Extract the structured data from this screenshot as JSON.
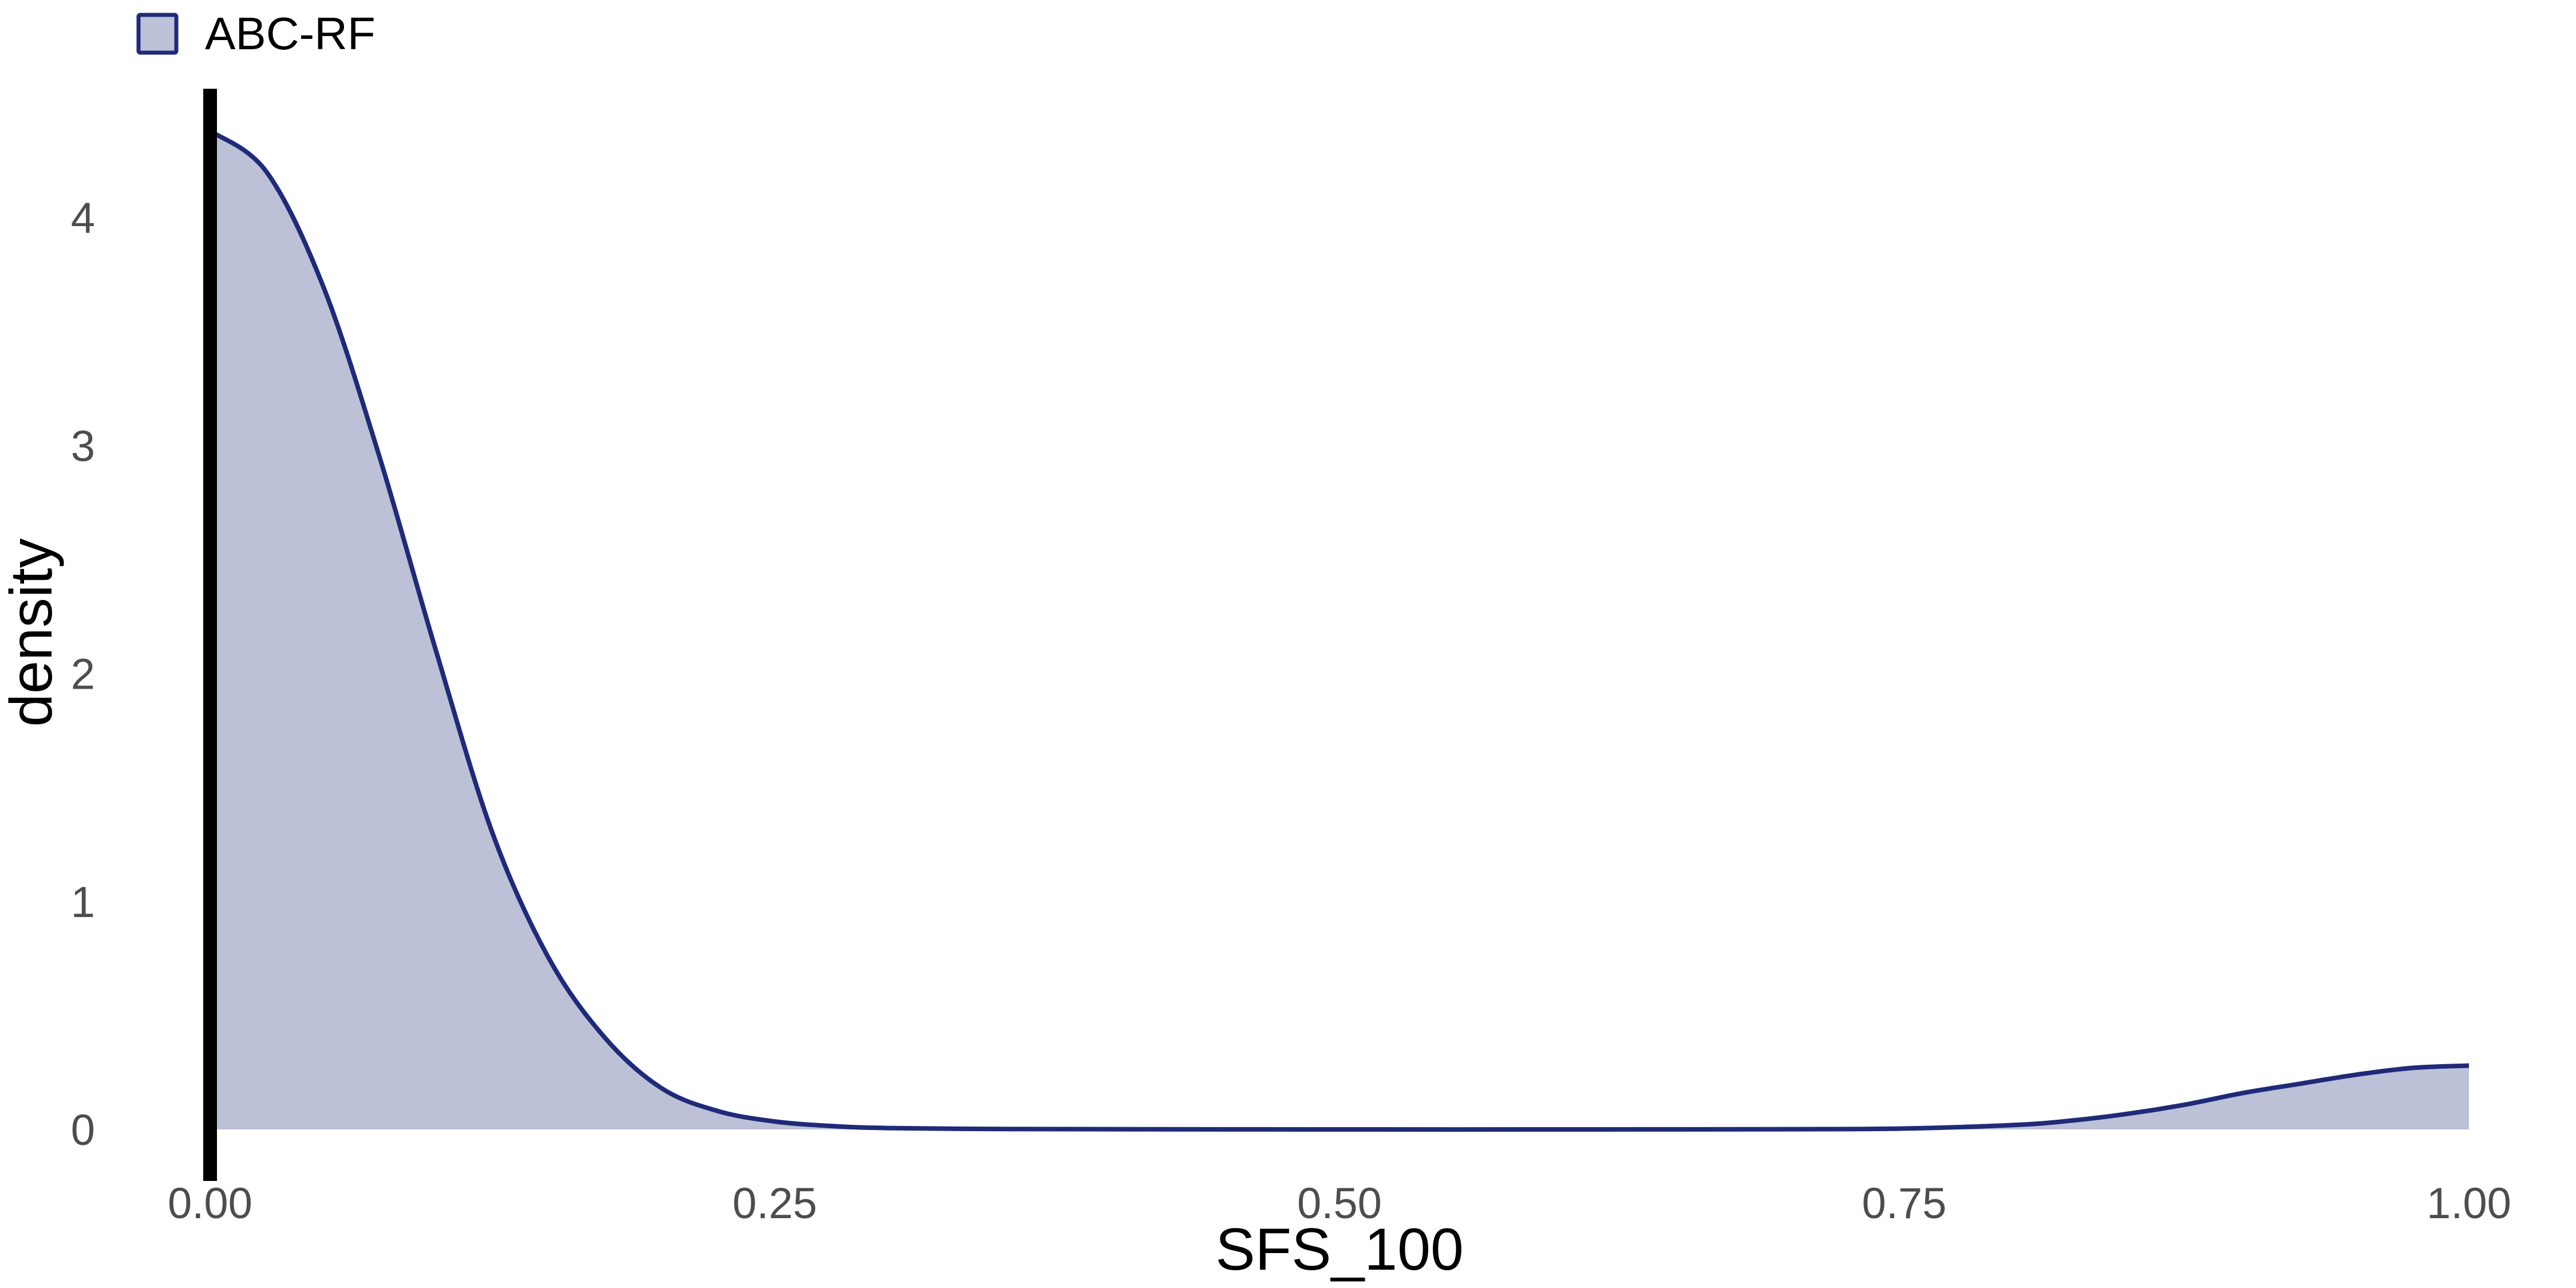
{
  "chart_data": {
    "type": "area",
    "xlabel": "SFS_100",
    "ylabel": "density",
    "xlim": [
      0,
      1
    ],
    "ylim": [
      0,
      4.6
    ],
    "x_ticks": [
      0,
      0.25,
      0.5,
      0.75,
      1
    ],
    "x_tick_labels": [
      "0.00",
      "0.25",
      "0.50",
      "0.75",
      "1.00"
    ],
    "y_ticks": [
      0,
      1,
      2,
      3,
      4
    ],
    "y_tick_labels": [
      "0",
      "1",
      "2",
      "3",
      "4"
    ],
    "grid": false,
    "legend_position": "top-left",
    "colors": {
      "fill": "#bcc1d8",
      "line": "#1f2a78",
      "vline": "#000000"
    },
    "vline_x": 0,
    "series": [
      {
        "name": "ABC-RF",
        "x": [
          0,
          0.025,
          0.05,
          0.075,
          0.1,
          0.125,
          0.15,
          0.175,
          0.2,
          0.225,
          0.25,
          0.275,
          0.3,
          0.35,
          0.4,
          0.5,
          0.6,
          0.7,
          0.75,
          0.8,
          0.825,
          0.85,
          0.875,
          0.9,
          0.925,
          0.95,
          0.975,
          1
        ],
        "y": [
          4.38,
          4.2,
          3.7,
          2.95,
          2.1,
          1.3,
          0.75,
          0.4,
          0.18,
          0.08,
          0.035,
          0.015,
          0.006,
          0.002,
          0.001,
          0.0,
          0.0,
          0.001,
          0.004,
          0.02,
          0.04,
          0.07,
          0.11,
          0.16,
          0.2,
          0.24,
          0.27,
          0.28
        ]
      }
    ]
  }
}
